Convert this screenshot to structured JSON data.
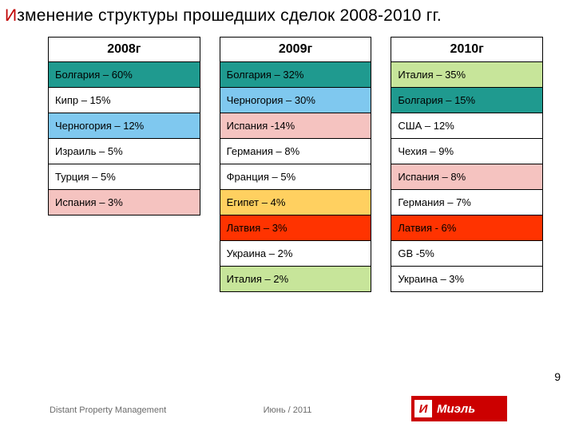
{
  "title_first": "И",
  "title_rest": "зменение структуры прошедших сделок 2008-2010 гг.",
  "columns": [
    {
      "header": "2008г",
      "rows": [
        {
          "text": "Болгария – 60%",
          "bg": "#1f9a8f"
        },
        {
          "text": "Кипр – 15%",
          "bg": "#ffffff"
        },
        {
          "text": "Черногория – 12%",
          "bg": "#7fc8ef"
        },
        {
          "text": "Израиль – 5%",
          "bg": "#ffffff"
        },
        {
          "text": "Турция – 5%",
          "bg": "#ffffff"
        },
        {
          "text": "Испания – 3%",
          "bg": "#f5c3c0"
        }
      ]
    },
    {
      "header": "2009г",
      "rows": [
        {
          "text": "Болгария – 32%",
          "bg": "#1f9a8f"
        },
        {
          "text": "Черногория – 30%",
          "bg": "#7fc8ef"
        },
        {
          "text": "Испания -14%",
          "bg": "#f5c3c0"
        },
        {
          "text": "Германия – 8%",
          "bg": "#ffffff"
        },
        {
          "text": "Франция – 5%",
          "bg": "#ffffff"
        },
        {
          "text": "Египет – 4%",
          "bg": "#ffd060"
        },
        {
          "text": "Латвия – 3%",
          "bg": "#ff3300"
        },
        {
          "text": "Украина – 2%",
          "bg": "#ffffff"
        },
        {
          "text": "Италия – 2%",
          "bg": "#c7e59a"
        }
      ]
    },
    {
      "header": "2010г",
      "rows": [
        {
          "text": "Италия – 35%",
          "bg": "#c7e59a"
        },
        {
          "text": "Болгария – 15%",
          "bg": "#1f9a8f"
        },
        {
          "text": "США – 12%",
          "bg": "#ffffff"
        },
        {
          "text": "Чехия – 9%",
          "bg": "#ffffff"
        },
        {
          "text": "Испания – 8%",
          "bg": "#f5c3c0"
        },
        {
          "text": "Германия – 7%",
          "bg": "#ffffff"
        },
        {
          "text": "Латвия -  6%",
          "bg": "#ff3300"
        },
        {
          "text": "GB -5%",
          "bg": "#ffffff"
        },
        {
          "text": "Украина – 3%",
          "bg": "#ffffff"
        }
      ]
    }
  ],
  "footer_left": "Distant Property Management",
  "footer_center": "Июнь / 2011",
  "page_number": "9",
  "logo": {
    "icon": "И",
    "text": "Миэль"
  }
}
